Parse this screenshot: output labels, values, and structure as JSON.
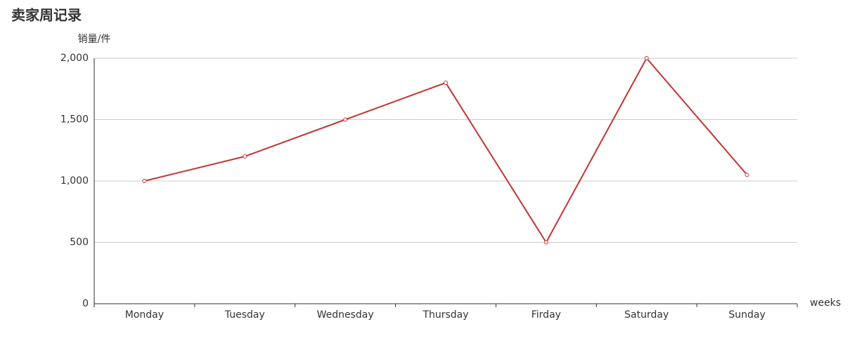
{
  "chart_data": {
    "type": "line",
    "title": "卖家周记录",
    "y_label": "销量/件",
    "x_label": "weeks",
    "categories": [
      "Monday",
      "Tuesday",
      "Wednesday",
      "Thursday",
      "Firday",
      "Saturday",
      "Sunday"
    ],
    "series": [
      {
        "color": "#c23531",
        "values": [
          1000,
          1200,
          1500,
          1800,
          500,
          2000,
          1050
        ]
      }
    ],
    "ylim": [
      0,
      2000
    ],
    "yticks": [
      0,
      500,
      {
        "value": 1000,
        "label": "1,000"
      },
      {
        "value": 1500,
        "label": "1,500"
      },
      {
        "value": 2000,
        "label": "2,000"
      }
    ],
    "grid": true
  }
}
